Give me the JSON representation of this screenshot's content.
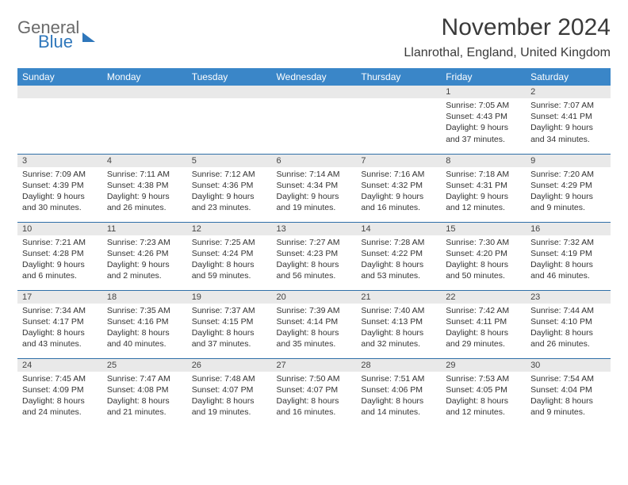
{
  "brand": {
    "word1": "General",
    "word2": "Blue",
    "color_gray": "#6a6a6a",
    "color_blue": "#2f77bb"
  },
  "title": "November 2024",
  "location": "Llanrothal, England, United Kingdom",
  "header_bg": "#3a86c8",
  "header_fg": "#ffffff",
  "daynum_bg": "#e9e9e9",
  "border_color": "#2f6fa8",
  "background_color": "#ffffff",
  "text_color": "#333333",
  "title_fontsize": 30,
  "location_fontsize": 16,
  "dayhead_fontsize": 12,
  "cell_fontsize": 10.5,
  "days_of_week": [
    "Sunday",
    "Monday",
    "Tuesday",
    "Wednesday",
    "Thursday",
    "Friday",
    "Saturday"
  ],
  "weeks": [
    [
      null,
      null,
      null,
      null,
      null,
      {
        "n": "1",
        "sunrise": "Sunrise: 7:05 AM",
        "sunset": "Sunset: 4:43 PM",
        "daylight": "Daylight: 9 hours and 37 minutes."
      },
      {
        "n": "2",
        "sunrise": "Sunrise: 7:07 AM",
        "sunset": "Sunset: 4:41 PM",
        "daylight": "Daylight: 9 hours and 34 minutes."
      }
    ],
    [
      {
        "n": "3",
        "sunrise": "Sunrise: 7:09 AM",
        "sunset": "Sunset: 4:39 PM",
        "daylight": "Daylight: 9 hours and 30 minutes."
      },
      {
        "n": "4",
        "sunrise": "Sunrise: 7:11 AM",
        "sunset": "Sunset: 4:38 PM",
        "daylight": "Daylight: 9 hours and 26 minutes."
      },
      {
        "n": "5",
        "sunrise": "Sunrise: 7:12 AM",
        "sunset": "Sunset: 4:36 PM",
        "daylight": "Daylight: 9 hours and 23 minutes."
      },
      {
        "n": "6",
        "sunrise": "Sunrise: 7:14 AM",
        "sunset": "Sunset: 4:34 PM",
        "daylight": "Daylight: 9 hours and 19 minutes."
      },
      {
        "n": "7",
        "sunrise": "Sunrise: 7:16 AM",
        "sunset": "Sunset: 4:32 PM",
        "daylight": "Daylight: 9 hours and 16 minutes."
      },
      {
        "n": "8",
        "sunrise": "Sunrise: 7:18 AM",
        "sunset": "Sunset: 4:31 PM",
        "daylight": "Daylight: 9 hours and 12 minutes."
      },
      {
        "n": "9",
        "sunrise": "Sunrise: 7:20 AM",
        "sunset": "Sunset: 4:29 PM",
        "daylight": "Daylight: 9 hours and 9 minutes."
      }
    ],
    [
      {
        "n": "10",
        "sunrise": "Sunrise: 7:21 AM",
        "sunset": "Sunset: 4:28 PM",
        "daylight": "Daylight: 9 hours and 6 minutes."
      },
      {
        "n": "11",
        "sunrise": "Sunrise: 7:23 AM",
        "sunset": "Sunset: 4:26 PM",
        "daylight": "Daylight: 9 hours and 2 minutes."
      },
      {
        "n": "12",
        "sunrise": "Sunrise: 7:25 AM",
        "sunset": "Sunset: 4:24 PM",
        "daylight": "Daylight: 8 hours and 59 minutes."
      },
      {
        "n": "13",
        "sunrise": "Sunrise: 7:27 AM",
        "sunset": "Sunset: 4:23 PM",
        "daylight": "Daylight: 8 hours and 56 minutes."
      },
      {
        "n": "14",
        "sunrise": "Sunrise: 7:28 AM",
        "sunset": "Sunset: 4:22 PM",
        "daylight": "Daylight: 8 hours and 53 minutes."
      },
      {
        "n": "15",
        "sunrise": "Sunrise: 7:30 AM",
        "sunset": "Sunset: 4:20 PM",
        "daylight": "Daylight: 8 hours and 50 minutes."
      },
      {
        "n": "16",
        "sunrise": "Sunrise: 7:32 AM",
        "sunset": "Sunset: 4:19 PM",
        "daylight": "Daylight: 8 hours and 46 minutes."
      }
    ],
    [
      {
        "n": "17",
        "sunrise": "Sunrise: 7:34 AM",
        "sunset": "Sunset: 4:17 PM",
        "daylight": "Daylight: 8 hours and 43 minutes."
      },
      {
        "n": "18",
        "sunrise": "Sunrise: 7:35 AM",
        "sunset": "Sunset: 4:16 PM",
        "daylight": "Daylight: 8 hours and 40 minutes."
      },
      {
        "n": "19",
        "sunrise": "Sunrise: 7:37 AM",
        "sunset": "Sunset: 4:15 PM",
        "daylight": "Daylight: 8 hours and 37 minutes."
      },
      {
        "n": "20",
        "sunrise": "Sunrise: 7:39 AM",
        "sunset": "Sunset: 4:14 PM",
        "daylight": "Daylight: 8 hours and 35 minutes."
      },
      {
        "n": "21",
        "sunrise": "Sunrise: 7:40 AM",
        "sunset": "Sunset: 4:13 PM",
        "daylight": "Daylight: 8 hours and 32 minutes."
      },
      {
        "n": "22",
        "sunrise": "Sunrise: 7:42 AM",
        "sunset": "Sunset: 4:11 PM",
        "daylight": "Daylight: 8 hours and 29 minutes."
      },
      {
        "n": "23",
        "sunrise": "Sunrise: 7:44 AM",
        "sunset": "Sunset: 4:10 PM",
        "daylight": "Daylight: 8 hours and 26 minutes."
      }
    ],
    [
      {
        "n": "24",
        "sunrise": "Sunrise: 7:45 AM",
        "sunset": "Sunset: 4:09 PM",
        "daylight": "Daylight: 8 hours and 24 minutes."
      },
      {
        "n": "25",
        "sunrise": "Sunrise: 7:47 AM",
        "sunset": "Sunset: 4:08 PM",
        "daylight": "Daylight: 8 hours and 21 minutes."
      },
      {
        "n": "26",
        "sunrise": "Sunrise: 7:48 AM",
        "sunset": "Sunset: 4:07 PM",
        "daylight": "Daylight: 8 hours and 19 minutes."
      },
      {
        "n": "27",
        "sunrise": "Sunrise: 7:50 AM",
        "sunset": "Sunset: 4:07 PM",
        "daylight": "Daylight: 8 hours and 16 minutes."
      },
      {
        "n": "28",
        "sunrise": "Sunrise: 7:51 AM",
        "sunset": "Sunset: 4:06 PM",
        "daylight": "Daylight: 8 hours and 14 minutes."
      },
      {
        "n": "29",
        "sunrise": "Sunrise: 7:53 AM",
        "sunset": "Sunset: 4:05 PM",
        "daylight": "Daylight: 8 hours and 12 minutes."
      },
      {
        "n": "30",
        "sunrise": "Sunrise: 7:54 AM",
        "sunset": "Sunset: 4:04 PM",
        "daylight": "Daylight: 8 hours and 9 minutes."
      }
    ]
  ]
}
